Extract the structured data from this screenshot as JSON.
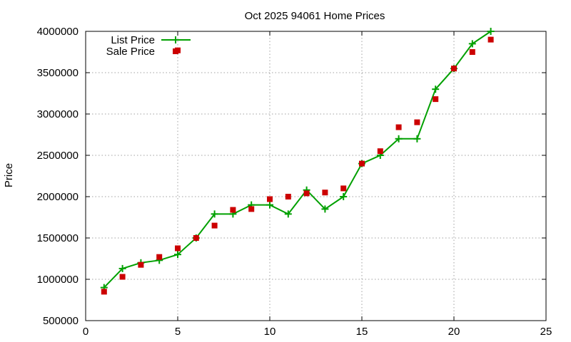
{
  "chart_data": {
    "type": "line",
    "title": "Oct 2025 94061 Home Prices",
    "xlabel": "",
    "ylabel": "Price",
    "xlim": [
      0,
      25
    ],
    "ylim": [
      500000,
      4000000
    ],
    "x_ticks": [
      0,
      5,
      10,
      15,
      20,
      25
    ],
    "y_ticks": [
      500000,
      1000000,
      1500000,
      2000000,
      2500000,
      3000000,
      3500000,
      4000000
    ],
    "grid": true,
    "legend_position": "top-left",
    "series": [
      {
        "name": "List Price",
        "style": "line+cross",
        "color": "#00a000",
        "x": [
          1,
          2,
          3,
          4,
          5,
          6,
          7,
          8,
          9,
          10,
          11,
          12,
          13,
          14,
          15,
          16,
          17,
          18,
          19,
          20,
          21,
          22
        ],
        "values": [
          900000,
          1130000,
          1200000,
          1230000,
          1300000,
          1500000,
          1790000,
          1790000,
          1900000,
          1900000,
          1790000,
          2080000,
          1850000,
          2000000,
          2400000,
          2500000,
          2700000,
          2700000,
          3300000,
          3550000,
          3850000,
          4000000
        ]
      },
      {
        "name": "Sale Price",
        "style": "square",
        "color": "#cc0000",
        "x": [
          1,
          2,
          3,
          4,
          5,
          5,
          6,
          7,
          8,
          9,
          10,
          11,
          12,
          13,
          14,
          15,
          16,
          17,
          18,
          19,
          20,
          21,
          22
        ],
        "values": [
          850000,
          1030000,
          1175000,
          1270000,
          1375000,
          3770000,
          1500000,
          1650000,
          1840000,
          1850000,
          1970000,
          2000000,
          2040000,
          2050000,
          2100000,
          2400000,
          2550000,
          2840000,
          2900000,
          3180000,
          3550000,
          3750000,
          3900000
        ]
      }
    ]
  }
}
